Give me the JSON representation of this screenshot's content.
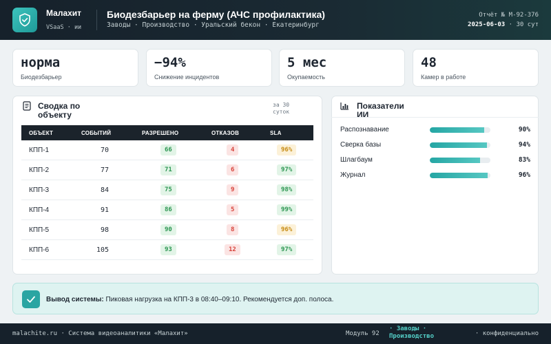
{
  "header": {
    "brand": "Малахит",
    "brand_sub": "VSaaS · ии",
    "title": "Биодезбарьер на ферму (АЧС профилактика)",
    "breadcrumb": "Заводы · Производство · Уральский бекон · Екатеринбург",
    "report_no": "Отчёт № М-92-376",
    "report_date": "2025-06-03",
    "report_period": "· 30 сут"
  },
  "kpis": [
    {
      "value": "норма",
      "label": "Биодезбарьер"
    },
    {
      "value": "−94%",
      "label": "Снижение инцидентов"
    },
    {
      "value": "5 мес",
      "label": "Окупаемость"
    },
    {
      "value": "48",
      "label": "Камер в работе"
    }
  ],
  "summary": {
    "title": "Сводка по объекту",
    "period": "за 30 суток",
    "columns": [
      "ОБЪЕКТ",
      "СОБЫТИЙ",
      "РАЗРЕШЕНО",
      "ОТКАЗОВ",
      "SLA"
    ],
    "rows": [
      {
        "object": "КПП-1",
        "events": "70",
        "allowed": "66",
        "denied": "4",
        "sla": "96%",
        "sla_status": "amber"
      },
      {
        "object": "КПП-2",
        "events": "77",
        "allowed": "71",
        "denied": "6",
        "sla": "97%",
        "sla_status": "green"
      },
      {
        "object": "КПП-3",
        "events": "84",
        "allowed": "75",
        "denied": "9",
        "sla": "98%",
        "sla_status": "green"
      },
      {
        "object": "КПП-4",
        "events": "91",
        "allowed": "86",
        "denied": "5",
        "sla": "99%",
        "sla_status": "green"
      },
      {
        "object": "КПП-5",
        "events": "98",
        "allowed": "90",
        "denied": "8",
        "sla": "96%",
        "sla_status": "amber"
      },
      {
        "object": "КПП-6",
        "events": "105",
        "allowed": "93",
        "denied": "12",
        "sla": "97%",
        "sla_status": "green"
      }
    ]
  },
  "ai": {
    "title": "Показатели ИИ",
    "metrics": [
      {
        "name": "Распознавание",
        "value": 90,
        "label": "90%"
      },
      {
        "name": "Сверка базы",
        "value": 94,
        "label": "94%"
      },
      {
        "name": "Шлагбаум",
        "value": 83,
        "label": "83%"
      },
      {
        "name": "Журнал",
        "value": 96,
        "label": "96%"
      }
    ]
  },
  "conclusion": {
    "label": "Вывод системы:",
    "text": " Пиковая нагрузка на КПП-3 в 08:40–09:10. Рекомендуется доп. полоса."
  },
  "footer": {
    "left": "malachite.ru · Система видеоаналитики «Малахит»",
    "module": "Модуль 92",
    "zone": "· Заводы · Производство",
    "right": "· конфиденциально"
  },
  "colors": {
    "accent": "#2aa5a2",
    "header_bg": "#16212b",
    "ok": "#2c9651",
    "bad": "#d8443c",
    "warn": "#c68a11"
  }
}
